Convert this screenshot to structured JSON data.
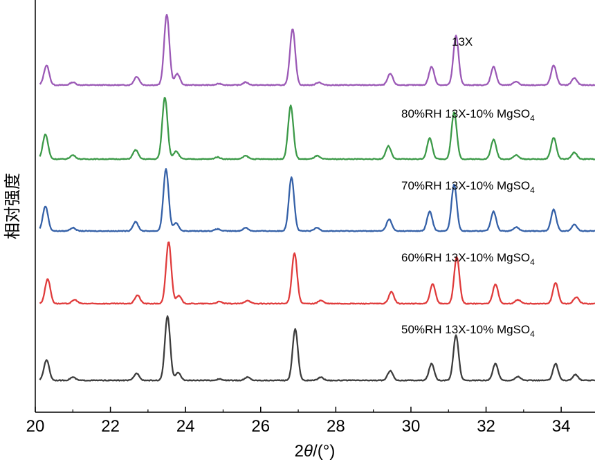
{
  "chart_data": {
    "type": "line",
    "title": "",
    "xlabel_prefix": "2",
    "xlabel_symbol": "θ",
    "xlabel_suffix": "/(°)",
    "ylabel": "相对强度",
    "xlim": [
      20,
      34.9
    ],
    "x_ticks": [
      20,
      22,
      24,
      26,
      28,
      30,
      32,
      34
    ],
    "grid": false,
    "legend": "inline labels above each trace",
    "peak_width": 0.07,
    "x_step": 0.02,
    "series": [
      {
        "name": "13X",
        "label_main": "13X",
        "label_sub": "",
        "color": "#9b59b6",
        "baseline": 0.0,
        "peaks": [
          [
            20.3,
            0.28
          ],
          [
            21.0,
            0.04
          ],
          [
            22.7,
            0.12
          ],
          [
            23.5,
            1.0
          ],
          [
            23.78,
            0.16
          ],
          [
            24.9,
            0.02
          ],
          [
            25.6,
            0.04
          ],
          [
            26.85,
            0.8
          ],
          [
            27.55,
            0.04
          ],
          [
            29.45,
            0.16
          ],
          [
            30.55,
            0.26
          ],
          [
            31.2,
            0.7
          ],
          [
            32.2,
            0.26
          ],
          [
            32.8,
            0.05
          ],
          [
            33.8,
            0.28
          ],
          [
            34.35,
            0.1
          ]
        ]
      },
      {
        "name": "80%RH 13X-10% MgSO4",
        "label_main": "80%RH 13X-10% MgSO",
        "label_sub": "4",
        "color": "#3c9a48",
        "baseline": 0.0,
        "peaks": [
          [
            20.27,
            0.38
          ],
          [
            21.0,
            0.06
          ],
          [
            22.67,
            0.14
          ],
          [
            23.45,
            0.95
          ],
          [
            23.75,
            0.12
          ],
          [
            24.85,
            0.03
          ],
          [
            25.6,
            0.05
          ],
          [
            26.8,
            0.82
          ],
          [
            27.5,
            0.05
          ],
          [
            29.4,
            0.2
          ],
          [
            30.5,
            0.32
          ],
          [
            31.15,
            0.72
          ],
          [
            32.2,
            0.3
          ],
          [
            32.8,
            0.06
          ],
          [
            33.8,
            0.33
          ],
          [
            34.35,
            0.1
          ]
        ]
      },
      {
        "name": "70%RH 13X-10% MgSO4",
        "label_main": "70%RH 13X-10% MgSO",
        "label_sub": "4",
        "color": "#3561a8",
        "baseline": 0.0,
        "peaks": [
          [
            20.27,
            0.38
          ],
          [
            21.0,
            0.05
          ],
          [
            22.67,
            0.14
          ],
          [
            23.48,
            0.95
          ],
          [
            23.75,
            0.12
          ],
          [
            24.85,
            0.03
          ],
          [
            25.6,
            0.05
          ],
          [
            26.82,
            0.83
          ],
          [
            27.5,
            0.05
          ],
          [
            29.42,
            0.18
          ],
          [
            30.5,
            0.3
          ],
          [
            31.15,
            0.72
          ],
          [
            32.2,
            0.3
          ],
          [
            32.8,
            0.06
          ],
          [
            33.8,
            0.33
          ],
          [
            34.35,
            0.1
          ]
        ]
      },
      {
        "name": "60%RH 13X-10% MgSO4",
        "label_main": "60%RH 13X-10% MgSO",
        "label_sub": "4",
        "color": "#e03c3c",
        "baseline": 0.0,
        "peaks": [
          [
            20.33,
            0.38
          ],
          [
            21.05,
            0.06
          ],
          [
            22.72,
            0.13
          ],
          [
            23.55,
            0.95
          ],
          [
            23.82,
            0.12
          ],
          [
            24.9,
            0.03
          ],
          [
            25.65,
            0.05
          ],
          [
            26.9,
            0.78
          ],
          [
            27.6,
            0.05
          ],
          [
            29.48,
            0.18
          ],
          [
            30.58,
            0.3
          ],
          [
            31.22,
            0.72
          ],
          [
            32.25,
            0.3
          ],
          [
            32.85,
            0.06
          ],
          [
            33.85,
            0.32
          ],
          [
            34.4,
            0.1
          ]
        ]
      },
      {
        "name": "50%RH 13X-10% MgSO4",
        "label_main": "50%RH 13X-10% MgSO",
        "label_sub": "4",
        "color": "#3d3d3d",
        "baseline": 0.0,
        "peaks": [
          [
            20.3,
            0.32
          ],
          [
            21.0,
            0.05
          ],
          [
            22.7,
            0.11
          ],
          [
            23.52,
            1.0
          ],
          [
            23.8,
            0.12
          ],
          [
            24.9,
            0.02
          ],
          [
            25.65,
            0.05
          ],
          [
            26.92,
            0.8
          ],
          [
            27.6,
            0.05
          ],
          [
            29.45,
            0.15
          ],
          [
            30.55,
            0.26
          ],
          [
            31.2,
            0.7
          ],
          [
            32.25,
            0.26
          ],
          [
            32.85,
            0.06
          ],
          [
            33.85,
            0.26
          ],
          [
            34.38,
            0.09
          ]
        ]
      }
    ]
  }
}
